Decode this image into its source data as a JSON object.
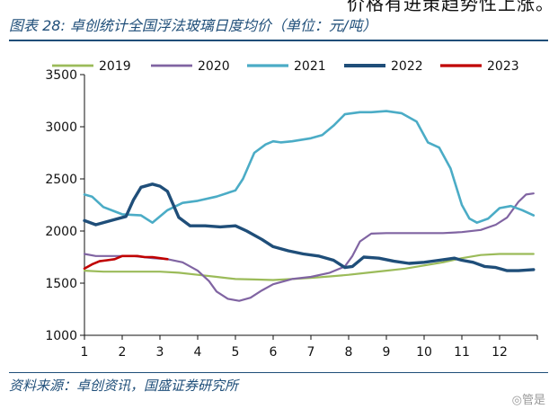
{
  "header": {
    "cutoff_text": "价格有进策趋势性上涨。",
    "figure_title": "图表 28:  卓创统计全国浮法玻璃日度均价（单位：元/吨）"
  },
  "footer": {
    "source": "资料来源：卓创资讯，国盛证券研究所",
    "watermark": "◎管是"
  },
  "chart_data": {
    "type": "line",
    "title": "卓创统计全国浮法玻璃日度均价（单位：元/吨）",
    "xlabel": "",
    "ylabel": "",
    "xlim": [
      1,
      13
    ],
    "ylim": [
      1000,
      3500
    ],
    "xticks": [
      "1",
      "2",
      "3",
      "4",
      "5",
      "6",
      "7",
      "8",
      "9",
      "10",
      "11",
      "12"
    ],
    "yticks": [
      "1000",
      "1500",
      "2000",
      "2500",
      "3000",
      "3500"
    ],
    "legend_position": "top",
    "series": [
      {
        "name": "2019",
        "color": "#9bbb59",
        "width": 2.2,
        "x": [
          1,
          1.5,
          2,
          2.5,
          3,
          3.5,
          4,
          4.5,
          5,
          5.5,
          6,
          6.5,
          7,
          7.5,
          8,
          8.5,
          9,
          9.5,
          10,
          10.5,
          11,
          11.5,
          12,
          12.9
        ],
        "y": [
          1620,
          1610,
          1610,
          1610,
          1610,
          1600,
          1580,
          1560,
          1540,
          1535,
          1530,
          1540,
          1550,
          1565,
          1580,
          1600,
          1620,
          1640,
          1670,
          1700,
          1740,
          1770,
          1780,
          1780
        ]
      },
      {
        "name": "2020",
        "color": "#8064a2",
        "width": 2.2,
        "x": [
          1,
          1.3,
          1.8,
          2.3,
          2.8,
          3.2,
          3.6,
          4.0,
          4.3,
          4.5,
          4.8,
          5.1,
          5.4,
          5.7,
          6.0,
          6.5,
          7.0,
          7.5,
          7.9,
          8.1,
          8.3,
          8.6,
          9,
          9.5,
          10,
          10.5,
          11,
          11.5,
          11.9,
          12.2,
          12.5,
          12.7,
          12.9
        ],
        "y": [
          1780,
          1760,
          1760,
          1760,
          1740,
          1730,
          1700,
          1620,
          1520,
          1420,
          1350,
          1330,
          1360,
          1430,
          1490,
          1540,
          1560,
          1600,
          1660,
          1760,
          1900,
          1975,
          1980,
          1980,
          1980,
          1980,
          1990,
          2010,
          2060,
          2130,
          2280,
          2350,
          2360
        ]
      },
      {
        "name": "2021",
        "color": "#4bacc6",
        "width": 2.6,
        "x": [
          1,
          1.2,
          1.5,
          2,
          2.5,
          2.8,
          3.2,
          3.6,
          4.0,
          4.5,
          5.0,
          5.2,
          5.5,
          5.8,
          6.0,
          6.2,
          6.5,
          7.0,
          7.3,
          7.6,
          7.9,
          8.3,
          8.6,
          9,
          9.4,
          9.8,
          10.1,
          10.4,
          10.7,
          11,
          11.2,
          11.4,
          11.7,
          12,
          12.3,
          12.6,
          12.9
        ],
        "y": [
          2350,
          2330,
          2230,
          2160,
          2150,
          2080,
          2200,
          2270,
          2290,
          2330,
          2390,
          2500,
          2750,
          2830,
          2860,
          2850,
          2860,
          2890,
          2920,
          3010,
          3120,
          3140,
          3140,
          3150,
          3130,
          3050,
          2850,
          2800,
          2600,
          2250,
          2120,
          2080,
          2120,
          2220,
          2240,
          2200,
          2150
        ]
      },
      {
        "name": "2022",
        "color": "#1f4e79",
        "width": 3.4,
        "x": [
          1,
          1.3,
          1.7,
          2.1,
          2.3,
          2.5,
          2.8,
          3.0,
          3.2,
          3.5,
          3.8,
          4.2,
          4.6,
          5.0,
          5.3,
          5.7,
          6.0,
          6.4,
          6.8,
          7.2,
          7.6,
          7.9,
          8.1,
          8.4,
          8.8,
          9.2,
          9.6,
          10,
          10.4,
          10.8,
          11,
          11.3,
          11.6,
          11.9,
          12.2,
          12.5,
          12.9
        ],
        "y": [
          2100,
          2060,
          2100,
          2140,
          2300,
          2420,
          2450,
          2430,
          2380,
          2130,
          2050,
          2050,
          2040,
          2050,
          2000,
          1920,
          1850,
          1810,
          1780,
          1760,
          1720,
          1650,
          1660,
          1750,
          1740,
          1710,
          1690,
          1700,
          1720,
          1740,
          1720,
          1700,
          1660,
          1650,
          1620,
          1620,
          1630
        ]
      },
      {
        "name": "2023",
        "color": "#c00000",
        "width": 2.6,
        "x": [
          1,
          1.2,
          1.4,
          1.6,
          1.8,
          2.0,
          2.2,
          2.4,
          2.6,
          2.8,
          3.0,
          3.2
        ],
        "y": [
          1640,
          1680,
          1710,
          1720,
          1730,
          1760,
          1760,
          1760,
          1750,
          1750,
          1740,
          1730
        ]
      }
    ]
  }
}
